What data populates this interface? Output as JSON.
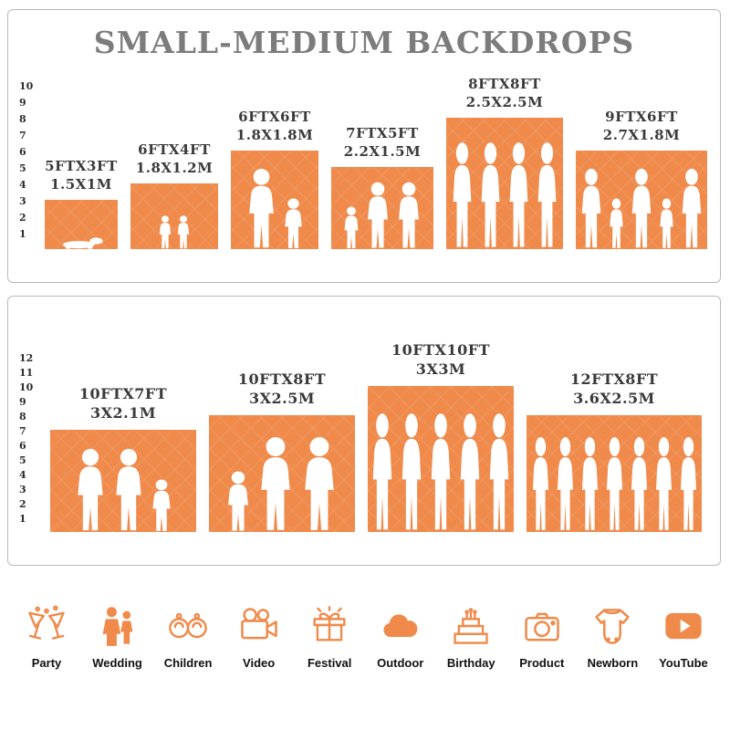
{
  "title": "SMALL-MEDIUM BACKDROPS",
  "colors": {
    "accent": "#EF8A4B",
    "title_gray": "#7C7C7C",
    "label_dark": "#3A3A3A"
  },
  "charts": [
    {
      "name": "small-medium-sizes",
      "ruler": [
        "1",
        "2",
        "3",
        "4",
        "5",
        "6",
        "7",
        "8",
        "9",
        "10"
      ],
      "bars": [
        {
          "label1": "5FTX3FT",
          "label2": "1.5X1M",
          "width_ft": 5,
          "height_ft": 3,
          "figures": [
            "baby"
          ]
        },
        {
          "label1": "6FTX4FT",
          "label2": "1.8X1.2M",
          "width_ft": 6,
          "height_ft": 4,
          "figures": [
            "child",
            "child"
          ]
        },
        {
          "label1": "6FTX6FT",
          "label2": "1.8X1.8M",
          "width_ft": 6,
          "height_ft": 6,
          "figures": [
            "adult",
            "child"
          ]
        },
        {
          "label1": "7FTX5FT",
          "label2": "2.2X1.5M",
          "width_ft": 7,
          "height_ft": 5,
          "figures": [
            "child",
            "adult",
            "adult"
          ]
        },
        {
          "label1": "8FTX8FT",
          "label2": "2.5X2.5M",
          "width_ft": 8,
          "height_ft": 8,
          "figures": [
            "adult",
            "adult",
            "adult",
            "adult"
          ]
        },
        {
          "label1": "9FTX6FT",
          "label2": "2.7X1.8M",
          "width_ft": 9,
          "height_ft": 6,
          "figures": [
            "adult",
            "child",
            "adult",
            "child",
            "adult"
          ]
        }
      ]
    },
    {
      "name": "medium-large-sizes",
      "ruler": [
        "1",
        "2",
        "3",
        "4",
        "5",
        "6",
        "7",
        "8",
        "9",
        "10",
        "11",
        "12"
      ],
      "bars": [
        {
          "label1": "10FTX7FT",
          "label2": "3X2.1M",
          "width_ft": 10,
          "height_ft": 7,
          "figures": [
            "adult",
            "adult",
            "child"
          ]
        },
        {
          "label1": "10FTX8FT",
          "label2": "3X2.5M",
          "width_ft": 10,
          "height_ft": 8,
          "figures": [
            "child",
            "adult",
            "adult"
          ]
        },
        {
          "label1": "10FTX10FT",
          "label2": "3X3M",
          "width_ft": 10,
          "height_ft": 10,
          "figures": [
            "adult",
            "adult",
            "adult",
            "adult",
            "adult"
          ]
        },
        {
          "label1": "12FTX8FT",
          "label2": "3.6X2.5M",
          "width_ft": 12,
          "height_ft": 8,
          "figures": [
            "adult",
            "adult",
            "adult",
            "adult",
            "adult",
            "adult",
            "adult"
          ]
        }
      ]
    }
  ],
  "categories": [
    {
      "icon": "party-icon",
      "label": "Party"
    },
    {
      "icon": "wedding-icon",
      "label": "Wedding"
    },
    {
      "icon": "children-icon",
      "label": "Children"
    },
    {
      "icon": "video-icon",
      "label": "Video"
    },
    {
      "icon": "festival-icon",
      "label": "Festival"
    },
    {
      "icon": "outdoor-icon",
      "label": "Outdoor"
    },
    {
      "icon": "birthday-icon",
      "label": "Birthday"
    },
    {
      "icon": "product-icon",
      "label": "Product"
    },
    {
      "icon": "newborn-icon",
      "label": "Newborn"
    },
    {
      "icon": "youtube-icon",
      "label": "YouTube"
    }
  ]
}
